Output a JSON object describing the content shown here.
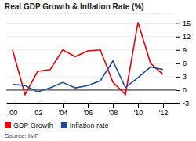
{
  "chart_data": {
    "type": "line",
    "title": "Real GDP Growth & Inflation Rate (%)",
    "x": [
      2000,
      2001,
      2002,
      2003,
      2004,
      2005,
      2006,
      2007,
      2008,
      2009,
      2010,
      2011,
      2012
    ],
    "series": [
      {
        "name": "GDP Growth",
        "color": "#e8000d",
        "values": [
          9.0,
          -1.0,
          4.2,
          4.6,
          9.0,
          7.5,
          8.8,
          9.0,
          1.8,
          -1.0,
          15.2,
          6.0,
          3.5
        ]
      },
      {
        "name": "Inflation rate",
        "color": "#1f4e9e",
        "values": [
          1.3,
          1.0,
          -0.4,
          0.5,
          1.7,
          0.5,
          1.0,
          2.1,
          6.5,
          0.6,
          2.8,
          5.2,
          4.6
        ]
      }
    ],
    "xlim": [
      1999.5,
      2013.0
    ],
    "xticks": [
      {
        "value": 2000,
        "label": "'00"
      },
      {
        "value": 2002,
        "label": "'02"
      },
      {
        "value": 2004,
        "label": "'04"
      },
      {
        "value": 2006,
        "label": "'06"
      },
      {
        "value": 2008,
        "label": "'08"
      },
      {
        "value": 2010,
        "label": "'10"
      },
      {
        "value": 2012,
        "label": "'12"
      }
    ],
    "ylim": [
      -3,
      16
    ],
    "yticks": [
      -3,
      0,
      3,
      6,
      9,
      12,
      15
    ],
    "grid": true,
    "legend": "bottom",
    "annotations": [
      "Source: IMF"
    ]
  }
}
